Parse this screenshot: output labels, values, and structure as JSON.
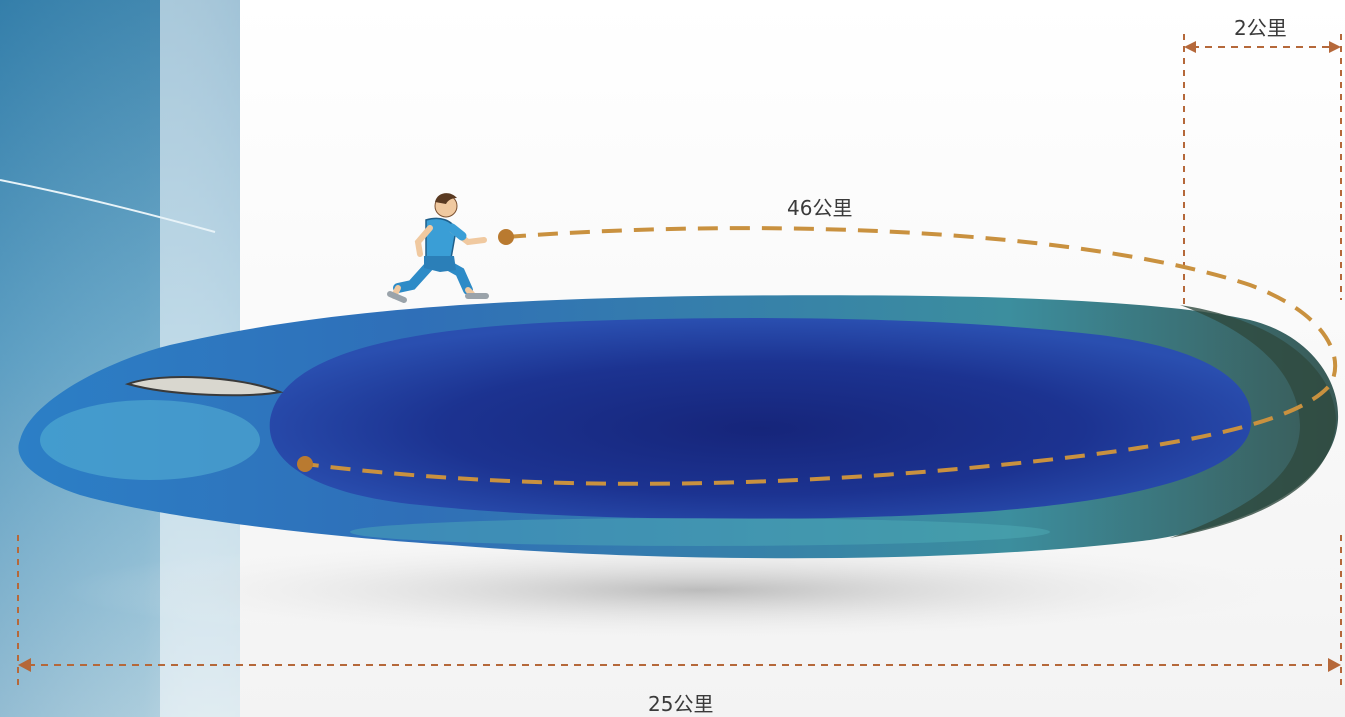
{
  "labels": {
    "width_top": "2公里",
    "perimeter": "46公里",
    "length_bottom": "25公里"
  },
  "colors": {
    "dimension_line": "#b5683a",
    "path_line": "#c9913f",
    "lagoon_deep": "#1b2f86",
    "reef_shallow": "#3d9ab8",
    "sea": "#4a8fb6"
  },
  "icons": {
    "runner": "runner-icon",
    "start_dot": "start-dot-icon",
    "end_dot": "end-dot-icon"
  }
}
